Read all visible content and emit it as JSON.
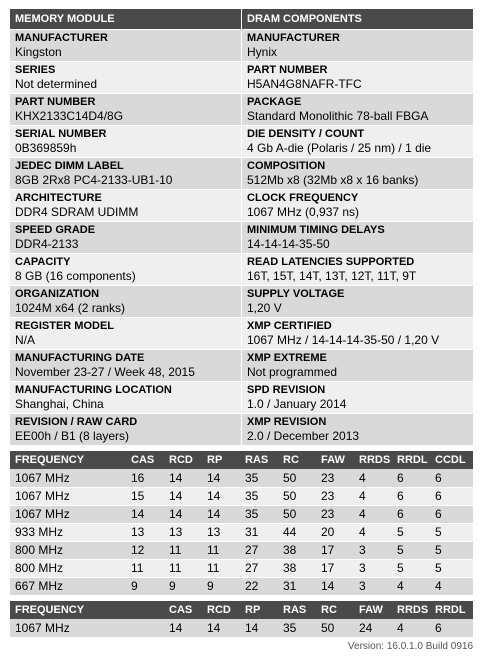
{
  "left": {
    "header": "MEMORY MODULE",
    "fields": [
      {
        "label": "MANUFACTURER",
        "value": "Kingston"
      },
      {
        "label": "SERIES",
        "value": "Not determined"
      },
      {
        "label": "PART NUMBER",
        "value": "KHX2133C14D4/8G"
      },
      {
        "label": "SERIAL NUMBER",
        "value": "0B369859h"
      },
      {
        "label": "JEDEC DIMM LABEL",
        "value": "8GB 2Rx8 PC4-2133-UB1-10"
      },
      {
        "label": "ARCHITECTURE",
        "value": "DDR4 SDRAM UDIMM"
      },
      {
        "label": "SPEED GRADE",
        "value": "DDR4-2133"
      },
      {
        "label": "CAPACITY",
        "value": "8 GB (16 components)"
      },
      {
        "label": "ORGANIZATION",
        "value": "1024M x64 (2 ranks)"
      },
      {
        "label": "REGISTER MODEL",
        "value": "N/A"
      },
      {
        "label": "MANUFACTURING DATE",
        "value": "November 23-27 / Week 48, 2015"
      },
      {
        "label": "MANUFACTURING LOCATION",
        "value": "Shanghai, China"
      },
      {
        "label": "REVISION / RAW CARD",
        "value": "EE00h / B1 (8 layers)"
      }
    ]
  },
  "right": {
    "header": "DRAM COMPONENTS",
    "fields": [
      {
        "label": "MANUFACTURER",
        "value": "Hynix"
      },
      {
        "label": "PART NUMBER",
        "value": "H5AN4G8NAFR-TFC"
      },
      {
        "label": "PACKAGE",
        "value": "Standard Monolithic 78-ball FBGA"
      },
      {
        "label": "DIE DENSITY / COUNT",
        "value": "4 Gb A-die (Polaris / 25 nm) / 1 die"
      },
      {
        "label": "COMPOSITION",
        "value": "512Mb x8 (32Mb x8 x 16 banks)"
      },
      {
        "label": "CLOCK FREQUENCY",
        "value": "1067 MHz (0,937 ns)"
      },
      {
        "label": "MINIMUM TIMING DELAYS",
        "value": "14-14-14-35-50"
      },
      {
        "label": "READ LATENCIES SUPPORTED",
        "value": "16T, 15T, 14T, 13T, 12T, 11T, 9T"
      },
      {
        "label": "SUPPLY VOLTAGE",
        "value": "1,20 V"
      },
      {
        "label": "XMP CERTIFIED",
        "value": "1067 MHz / 14-14-14-35-50 / 1,20 V"
      },
      {
        "label": "XMP EXTREME",
        "value": "Not programmed"
      },
      {
        "label": "SPD REVISION",
        "value": "1.0 / January 2014"
      },
      {
        "label": "XMP REVISION",
        "value": "2.0 / December 2013"
      }
    ]
  },
  "timings": {
    "headers": [
      "FREQUENCY",
      "CAS",
      "RCD",
      "RP",
      "RAS",
      "RC",
      "FAW",
      "RRDS",
      "RRDL",
      "CCDL"
    ],
    "rows": [
      [
        "1067 MHz",
        "16",
        "14",
        "14",
        "35",
        "50",
        "23",
        "4",
        "6",
        "6"
      ],
      [
        "1067 MHz",
        "15",
        "14",
        "14",
        "35",
        "50",
        "23",
        "4",
        "6",
        "6"
      ],
      [
        "1067 MHz",
        "14",
        "14",
        "14",
        "35",
        "50",
        "23",
        "4",
        "6",
        "6"
      ],
      [
        "933 MHz",
        "13",
        "13",
        "13",
        "31",
        "44",
        "20",
        "4",
        "5",
        "5"
      ],
      [
        "800 MHz",
        "12",
        "11",
        "11",
        "27",
        "38",
        "17",
        "3",
        "5",
        "5"
      ],
      [
        "800 MHz",
        "11",
        "11",
        "11",
        "27",
        "38",
        "17",
        "3",
        "5",
        "5"
      ],
      [
        "667 MHz",
        "9",
        "9",
        "9",
        "22",
        "31",
        "14",
        "3",
        "4",
        "4"
      ]
    ]
  },
  "xmp_timings": {
    "headers": [
      "FREQUENCY",
      "CAS",
      "RCD",
      "RP",
      "RAS",
      "RC",
      "FAW",
      "RRDS",
      "RRDL"
    ],
    "rows": [
      [
        "1067 MHz",
        "14",
        "14",
        "14",
        "35",
        "50",
        "24",
        "4",
        "6"
      ]
    ]
  },
  "version": "Version: 16.0.1.0 Build 0916"
}
